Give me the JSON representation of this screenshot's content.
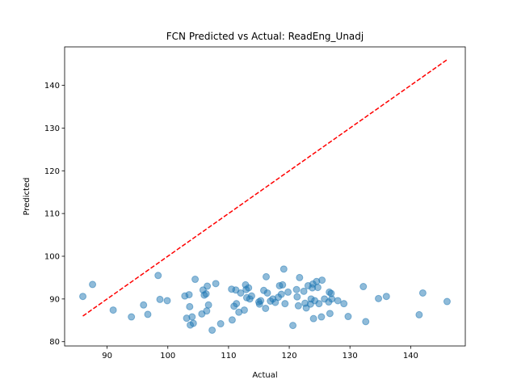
{
  "chart_data": {
    "type": "scatter",
    "title": "FCN Predicted vs Actual: ReadEng_Unadj",
    "xlabel": "Actual",
    "ylabel": "Predicted",
    "xlim": [
      83,
      149
    ],
    "ylim": [
      79,
      149
    ],
    "xticks": [
      90,
      100,
      110,
      120,
      130,
      140
    ],
    "yticks": [
      80,
      90,
      100,
      110,
      120,
      130,
      140
    ],
    "grid": false,
    "colors": {
      "points": "#1f77b4",
      "reference_line": "#ff0000"
    },
    "reference_line": {
      "x": [
        86,
        146
      ],
      "y": [
        86,
        146
      ],
      "style": "dashed"
    },
    "series": [
      {
        "points": [
          [
            86,
            90.6
          ],
          [
            87.6,
            93.4
          ],
          [
            91,
            87.4
          ],
          [
            94,
            85.8
          ],
          [
            96,
            88.6
          ],
          [
            96.7,
            86.4
          ],
          [
            98.4,
            95.5
          ],
          [
            98.7,
            89.9
          ],
          [
            99.9,
            89.6
          ],
          [
            102.8,
            90.7
          ],
          [
            103.1,
            85.5
          ],
          [
            103.5,
            91.0
          ],
          [
            103.6,
            88.2
          ],
          [
            103.7,
            83.9
          ],
          [
            104.0,
            85.8
          ],
          [
            104.2,
            84.3
          ],
          [
            104.5,
            94.6
          ],
          [
            105.6,
            86.5
          ],
          [
            105.8,
            92.1
          ],
          [
            106.0,
            90.9
          ],
          [
            106.3,
            91.2
          ],
          [
            106.4,
            87.2
          ],
          [
            106.5,
            93.0
          ],
          [
            106.7,
            88.6
          ],
          [
            107.3,
            82.7
          ],
          [
            107.9,
            93.6
          ],
          [
            108.7,
            84.2
          ],
          [
            110.5,
            92.3
          ],
          [
            110.6,
            85.1
          ],
          [
            110.9,
            88.3
          ],
          [
            111.2,
            92.1
          ],
          [
            111.3,
            88.9
          ],
          [
            111.7,
            86.9
          ],
          [
            112.0,
            91.4
          ],
          [
            112.6,
            87.4
          ],
          [
            112.8,
            93.3
          ],
          [
            112.9,
            92.2
          ],
          [
            113.0,
            90.3
          ],
          [
            113.3,
            92.6
          ],
          [
            113.5,
            90.0
          ],
          [
            113.8,
            90.7
          ],
          [
            115.0,
            89.3
          ],
          [
            115.1,
            88.8
          ],
          [
            115.3,
            89.6
          ],
          [
            115.8,
            92.0
          ],
          [
            116.1,
            87.8
          ],
          [
            116.2,
            95.2
          ],
          [
            116.4,
            91.4
          ],
          [
            116.9,
            89.5
          ],
          [
            117.3,
            90.0
          ],
          [
            117.7,
            89.2
          ],
          [
            118.2,
            90.4
          ],
          [
            118.4,
            93.1
          ],
          [
            118.7,
            91.1
          ],
          [
            118.9,
            93.3
          ],
          [
            119.1,
            97.0
          ],
          [
            119.3,
            88.9
          ],
          [
            119.8,
            91.6
          ],
          [
            120.6,
            83.8
          ],
          [
            121.2,
            92.2
          ],
          [
            121.3,
            90.5
          ],
          [
            121.5,
            88.4
          ],
          [
            121.7,
            95.0
          ],
          [
            122.4,
            91.8
          ],
          [
            122.6,
            89.0
          ],
          [
            122.8,
            87.9
          ],
          [
            123.1,
            93.1
          ],
          [
            123.5,
            88.8
          ],
          [
            123.6,
            90.0
          ],
          [
            123.8,
            92.6
          ],
          [
            123.9,
            93.5
          ],
          [
            124.0,
            85.4
          ],
          [
            124.2,
            89.6
          ],
          [
            124.5,
            94.1
          ],
          [
            124.7,
            92.7
          ],
          [
            124.9,
            88.9
          ],
          [
            125.3,
            85.8
          ],
          [
            125.4,
            94.4
          ],
          [
            125.8,
            90.0
          ],
          [
            126.5,
            89.3
          ],
          [
            126.6,
            91.6
          ],
          [
            126.7,
            86.6
          ],
          [
            126.9,
            91.3
          ],
          [
            127.0,
            90.0
          ],
          [
            128.0,
            89.6
          ],
          [
            129.0,
            88.9
          ],
          [
            129.7,
            85.9
          ],
          [
            132.2,
            92.9
          ],
          [
            132.6,
            84.7
          ],
          [
            134.7,
            90.1
          ],
          [
            136.0,
            90.6
          ],
          [
            141.4,
            86.3
          ],
          [
            142.0,
            91.4
          ],
          [
            146.0,
            89.4
          ]
        ]
      }
    ]
  }
}
